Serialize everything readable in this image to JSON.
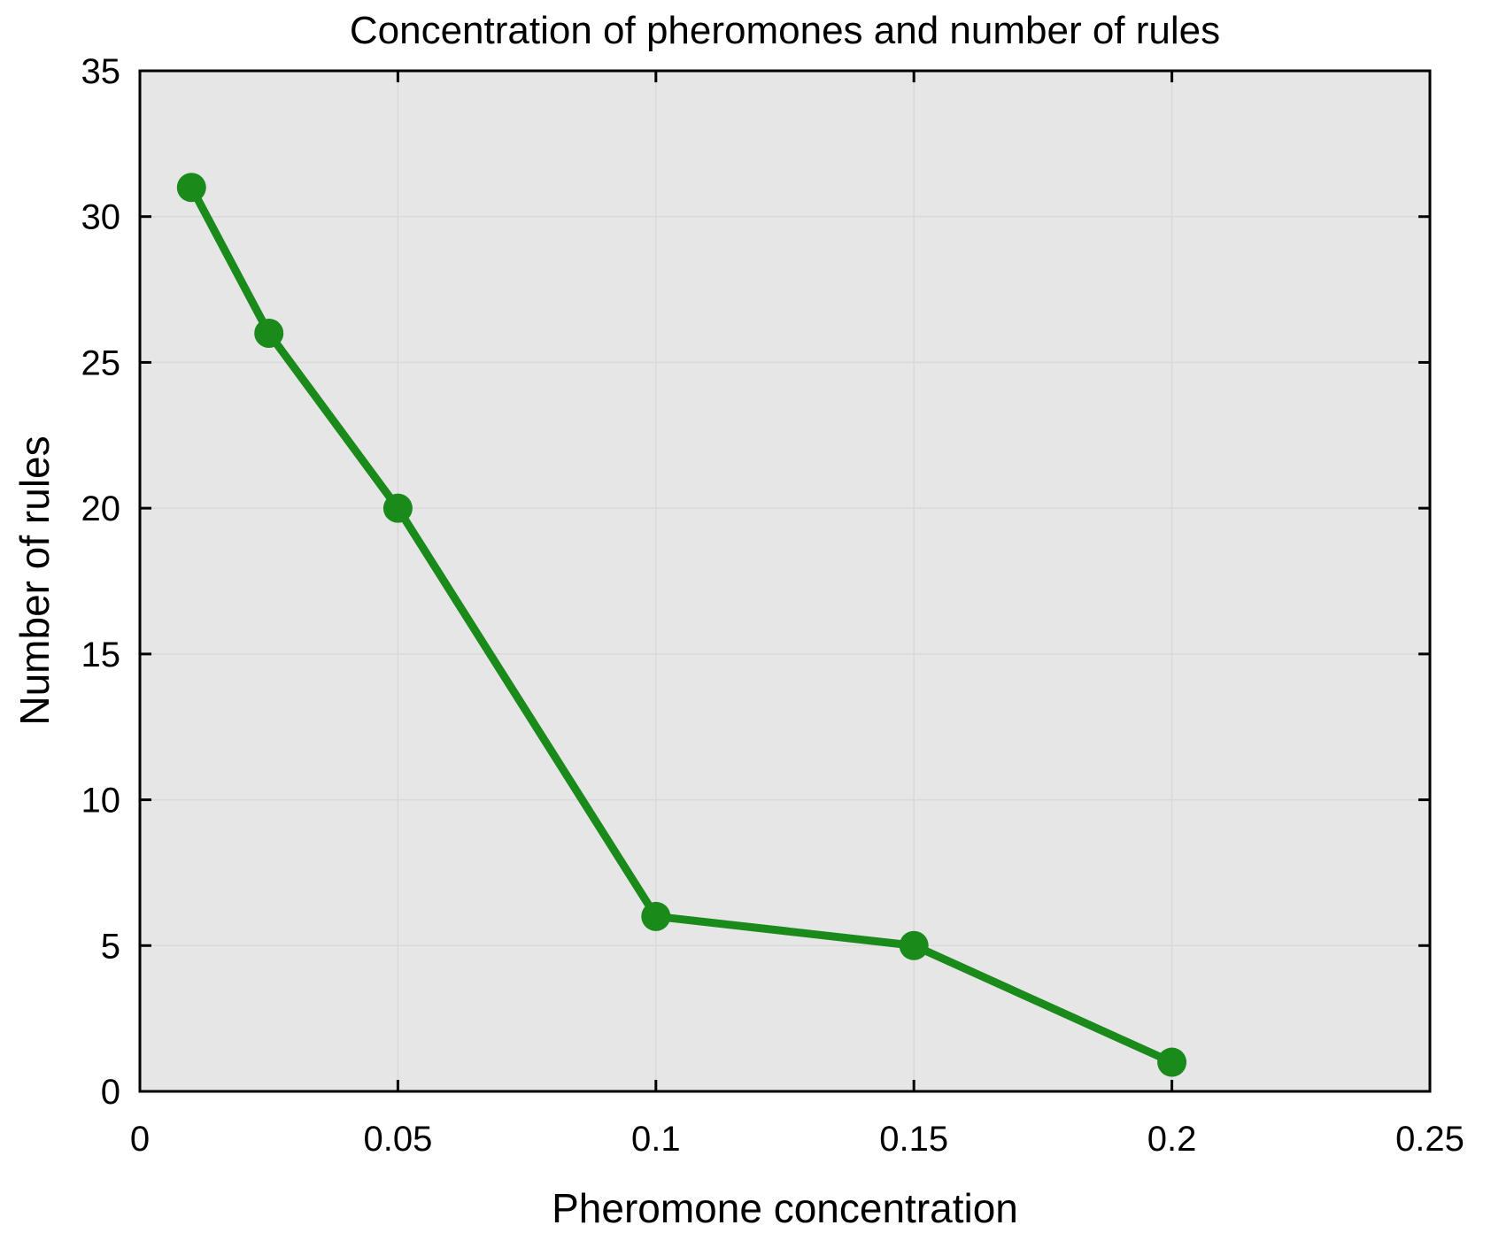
{
  "chart_data": {
    "type": "line",
    "title": "Concentration of pheromones and number of rules",
    "xlabel": "Pheromone concentration",
    "ylabel": "Number of rules",
    "series": [
      {
        "name": "rules-vs-concentration",
        "x": [
          0.01,
          0.025,
          0.05,
          0.1,
          0.15,
          0.2
        ],
        "y": [
          31,
          26,
          20,
          6,
          5,
          1
        ]
      }
    ],
    "xlim": [
      0,
      0.25
    ],
    "ylim": [
      0,
      35
    ],
    "x_ticks": [
      0,
      0.05,
      0.1,
      0.15,
      0.2,
      0.25
    ],
    "x_tick_labels": [
      "0",
      "0.05",
      "0.1",
      "0.15",
      "0.2",
      "0.25"
    ],
    "y_ticks": [
      0,
      5,
      10,
      15,
      20,
      25,
      30,
      35
    ],
    "y_tick_labels": [
      "0",
      "5",
      "10",
      "15",
      "20",
      "25",
      "30",
      "35"
    ],
    "grid": true,
    "legend": "none",
    "colors": {
      "line": "#1a8a1a",
      "marker": "#1a8a1a",
      "plot_background": "#e6e6e6",
      "gridline": "#d9d9d9",
      "axis": "#000000",
      "text": "#000000",
      "figure_background": "#ffffff"
    }
  }
}
